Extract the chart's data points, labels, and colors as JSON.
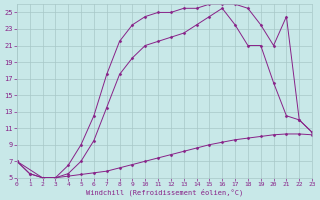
{
  "xlabel": "Windchill (Refroidissement éolien,°C)",
  "bg_color": "#c8e8e8",
  "grid_color": "#a8c8c8",
  "line_color": "#882288",
  "xlim": [
    0,
    23
  ],
  "ylim": [
    5,
    26
  ],
  "xticks": [
    0,
    1,
    2,
    3,
    4,
    5,
    6,
    7,
    8,
    9,
    10,
    11,
    12,
    13,
    14,
    15,
    16,
    17,
    18,
    19,
    20,
    21,
    22,
    23
  ],
  "yticks": [
    5,
    7,
    9,
    11,
    13,
    15,
    17,
    19,
    21,
    23,
    25
  ],
  "series": [
    {
      "x": [
        0,
        1,
        2,
        3,
        4,
        5,
        6,
        7,
        8,
        9,
        10,
        11,
        12,
        13,
        14,
        15,
        16,
        17,
        18,
        19,
        20,
        21,
        22,
        23
      ],
      "y": [
        7,
        5.5,
        5,
        5,
        5.2,
        5.4,
        5.6,
        5.8,
        6.2,
        6.6,
        7.0,
        7.4,
        7.8,
        8.2,
        8.6,
        9.0,
        9.3,
        9.6,
        9.8,
        10.0,
        10.2,
        10.3,
        10.3,
        10.2
      ]
    },
    {
      "x": [
        0,
        1,
        2,
        3,
        4,
        5,
        6,
        7,
        8,
        9,
        10,
        11,
        12,
        13,
        14,
        15,
        16,
        17,
        18,
        19,
        20,
        21,
        22,
        23
      ],
      "y": [
        7,
        5.5,
        5,
        5,
        5.5,
        7.0,
        9.5,
        13.5,
        17.5,
        19.5,
        21.0,
        21.5,
        22.0,
        22.5,
        23.5,
        24.5,
        25.5,
        23.5,
        21.0,
        21.0,
        16.5,
        12.5,
        12.0,
        10.5
      ]
    },
    {
      "x": [
        0,
        2,
        3,
        4,
        5,
        6,
        7,
        8,
        9,
        10,
        11,
        12,
        13,
        14,
        15,
        16,
        17,
        18,
        19,
        20,
        21,
        22,
        23
      ],
      "y": [
        7,
        5,
        5,
        6.5,
        9.0,
        12.5,
        17.5,
        21.5,
        23.5,
        24.5,
        25.0,
        25.0,
        25.5,
        25.5,
        26.0,
        26.0,
        26.0,
        25.5,
        23.5,
        21.0,
        24.5,
        12.0,
        10.5
      ]
    }
  ]
}
